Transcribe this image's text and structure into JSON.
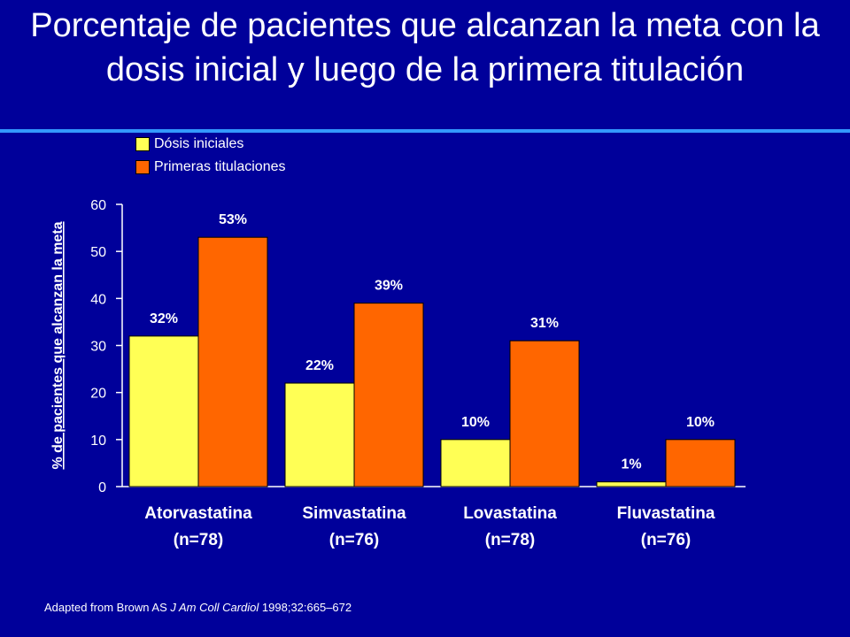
{
  "title": "Porcentaje de pacientes que alcanzan la meta con la dosis inicial y luego de la primera titulación",
  "source": {
    "prefix": "Adapted from Brown AS ",
    "journal": "J Am Coll Cardiol",
    "suffix": " 1998;32:665–672"
  },
  "colors": {
    "background": "#00009a",
    "rule": "#3399ff",
    "initial": "#ffff55",
    "titration": "#ff6600"
  },
  "chart_data": {
    "type": "bar",
    "title": "",
    "ylabel": "% de pacientes que alcanzan la meta",
    "xlabel": "",
    "ylim": [
      0,
      60
    ],
    "yticks": [
      "0",
      "10",
      "20",
      "30",
      "40",
      "50",
      "60"
    ],
    "grid": false,
    "legend_position": "top-left",
    "categories": [
      {
        "name": "Atorvastatina",
        "n": "(n=78)"
      },
      {
        "name": "Simvastatina",
        "n": "(n=76)"
      },
      {
        "name": "Lovastatina",
        "n": "(n=78)"
      },
      {
        "name": "Fluvastatina",
        "n": "(n=76)"
      }
    ],
    "series": [
      {
        "name": "Dósis iniciales",
        "color": "#ffff55",
        "values": [
          32,
          22,
          10,
          1
        ],
        "labels": [
          "32%",
          "22%",
          "10%",
          "1%"
        ]
      },
      {
        "name": "Primeras titulaciones",
        "color": "#ff6600",
        "values": [
          53,
          39,
          31,
          10
        ],
        "labels": [
          "53%",
          "39%",
          "31%",
          "10%"
        ]
      }
    ]
  }
}
